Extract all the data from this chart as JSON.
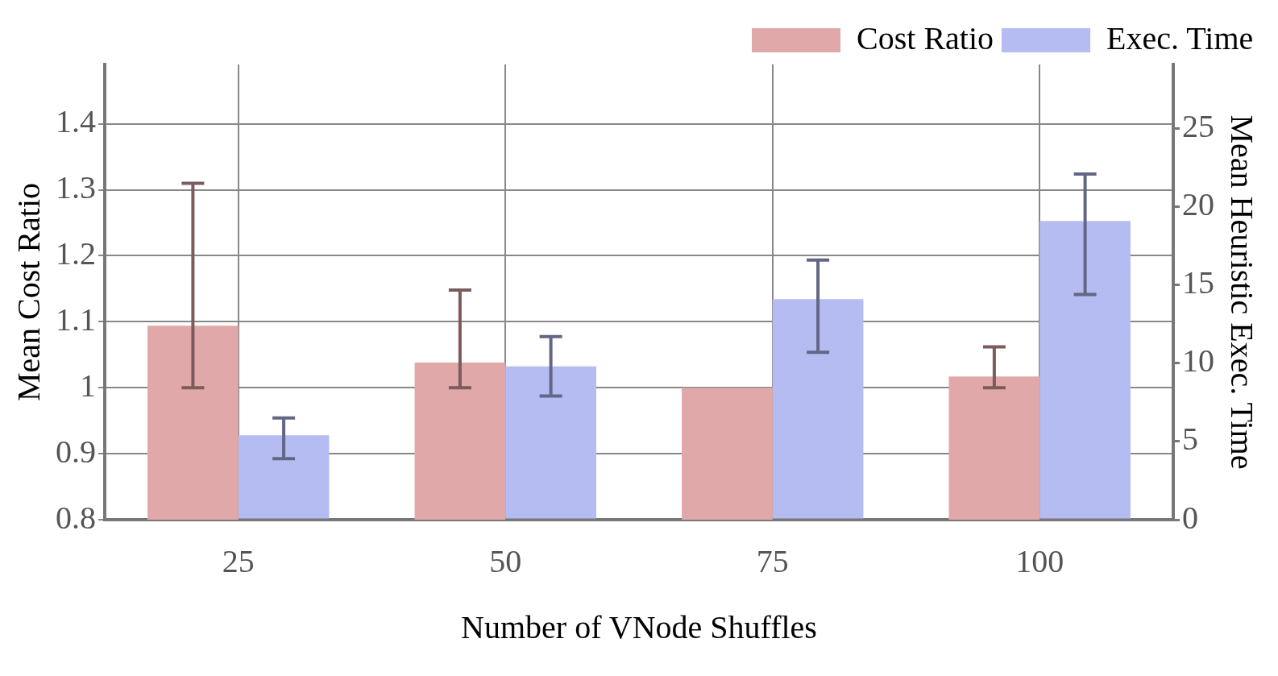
{
  "chart_data": {
    "type": "bar",
    "xlabel": "Number of VNode Shuffles",
    "ylabel": "Mean Cost Ratio",
    "y2label": "Mean Heuristic Exec. Time",
    "categories": [
      "25",
      "50",
      "75",
      "100"
    ],
    "series": [
      {
        "name": "Cost Ratio",
        "color": "#e0a8a8",
        "values": [
          1.094,
          1.038,
          1.0,
          1.017
        ],
        "errors": [
          [
            1.0,
            1.31
          ],
          [
            1.0,
            1.148
          ],
          null,
          [
            1.0,
            1.062
          ]
        ]
      },
      {
        "name": "Exec. Time",
        "color": "#b4bcf2",
        "axis": "y2",
        "values": [
          5.4,
          9.8,
          14.1,
          19.1
        ],
        "errors": [
          [
            3.9,
            6.5
          ],
          [
            7.9,
            11.7
          ],
          [
            10.7,
            16.6
          ],
          [
            14.4,
            22.1
          ]
        ]
      }
    ],
    "ylim": [
      0.8,
      1.49
    ],
    "yticks": [
      0.8,
      0.9,
      {
        "value": 1.0,
        "label": "1"
      },
      1.1,
      1.2,
      1.3,
      1.4
    ],
    "y2lim": [
      0,
      29.1
    ],
    "y2ticks": [
      0,
      5,
      10,
      15,
      20,
      25
    ],
    "grid": true,
    "legend": "top right"
  }
}
